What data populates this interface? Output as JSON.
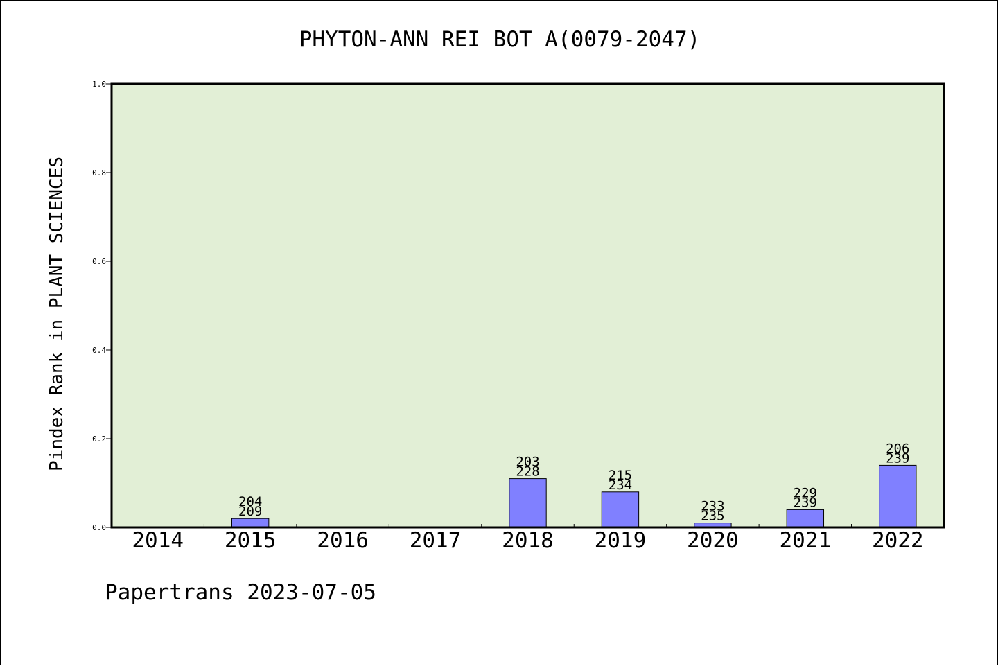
{
  "chart_data": {
    "type": "bar",
    "title": "PHYTON-ANN REI BOT A(0079-2047)",
    "xlabel": "",
    "ylabel": "Pindex Rank in PLANT SCIENCES",
    "ylim": [
      0,
      1.0
    ],
    "yticks": [
      "0.0",
      "0.2",
      "0.4",
      "0.6",
      "0.8",
      "1.0"
    ],
    "categories": [
      "2014",
      "2015",
      "2016",
      "2017",
      "2018",
      "2019",
      "2020",
      "2021",
      "2022"
    ],
    "values": [
      null,
      0.02,
      null,
      null,
      0.11,
      0.08,
      0.01,
      0.04,
      0.14
    ],
    "labels": [
      null,
      [
        "204",
        "209"
      ],
      null,
      null,
      [
        "203",
        "228"
      ],
      [
        "215",
        "234"
      ],
      [
        "233",
        "235"
      ],
      [
        "229",
        "239"
      ],
      [
        "206",
        "239"
      ]
    ],
    "grid": false,
    "colors": {
      "plot_background": "#e2efd6",
      "bar_fill": "#8080ff",
      "bar_stroke": "#000000"
    }
  },
  "footer": {
    "text": "Papertrans 2023-07-05"
  }
}
